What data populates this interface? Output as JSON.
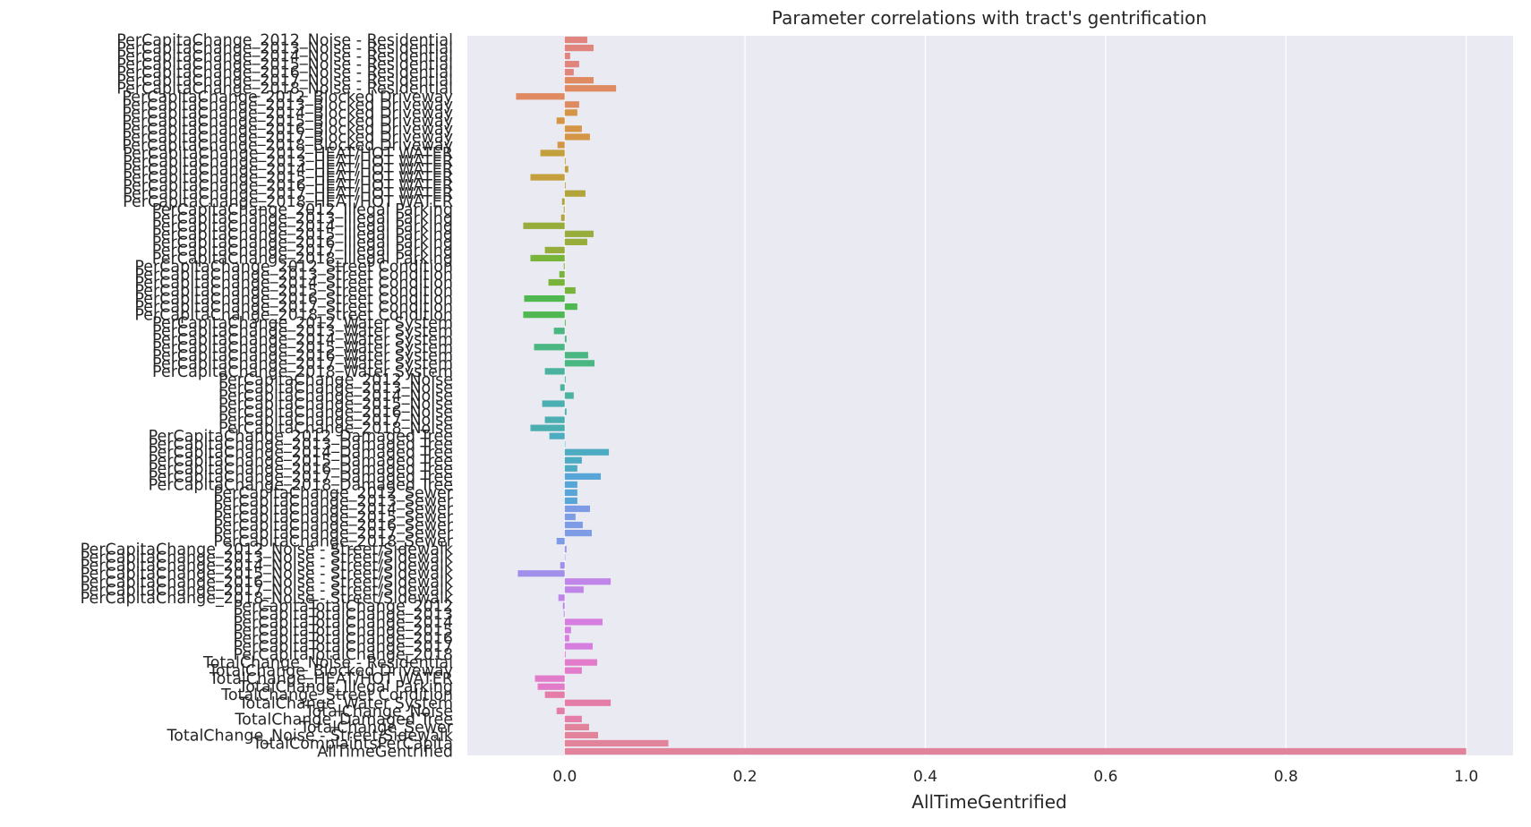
{
  "chart_data": {
    "type": "bar",
    "orientation": "horizontal",
    "title": "Parameter correlations with tract's gentrification",
    "xlabel": "AllTimeGentrified",
    "ylabel": "",
    "xlim": [
      -0.108,
      1.052
    ],
    "xticks": [
      0.0,
      0.2,
      0.4,
      0.6,
      0.8,
      1.0
    ],
    "xtick_labels": [
      "0.0",
      "0.2",
      "0.4",
      "0.6",
      "0.8",
      "1.0"
    ],
    "grid": true,
    "colors": {
      "background": "#eaeaf2",
      "grid": "#ffffff",
      "palette": [
        "#e1847d",
        "#e08a61",
        "#d59546",
        "#c49f3e",
        "#b1a53a",
        "#97ad3b",
        "#78b33a",
        "#4fb851",
        "#4ab783",
        "#4bb29f",
        "#4bafb1",
        "#4eacc2",
        "#58a6d7",
        "#7e9ce6",
        "#a190ea",
        "#bf85e9",
        "#d67de0",
        "#e27bc9",
        "#e47ea9",
        "#e1849b"
      ]
    },
    "categories": [
      "PerCapitaChange_2012_Noise - Residential",
      "PerCapitaChange_2013_Noise - Residential",
      "PerCapitaChange_2014_Noise - Residential",
      "PerCapitaChange_2015_Noise - Residential",
      "PerCapitaChange_2016_Noise - Residential",
      "PerCapitaChange_2017_Noise - Residential",
      "PerCapitaChange_2018_Noise - Residential",
      "PerCapitaChange_2012_Blocked Driveway",
      "PerCapitaChange_2013_Blocked Driveway",
      "PerCapitaChange_2014_Blocked Driveway",
      "PerCapitaChange_2015_Blocked Driveway",
      "PerCapitaChange_2016_Blocked Driveway",
      "PerCapitaChange_2017_Blocked Driveway",
      "PerCapitaChange_2018_Blocked Driveway",
      "PerCapitaChange_2012_HEAT/HOT WATER",
      "PerCapitaChange_2013_HEAT/HOT WATER",
      "PerCapitaChange_2014_HEAT/HOT WATER",
      "PerCapitaChange_2015_HEAT/HOT WATER",
      "PerCapitaChange_2016_HEAT/HOT WATER",
      "PerCapitaChange_2017_HEAT/HOT WATER",
      "PerCapitaChange_2018_HEAT/HOT WATER",
      "PerCapitaChange_2012_Illegal Parking",
      "PerCapitaChange_2013_Illegal Parking",
      "PerCapitaChange_2014_Illegal Parking",
      "PerCapitaChange_2015_Illegal Parking",
      "PerCapitaChange_2016_Illegal Parking",
      "PerCapitaChange_2017_Illegal Parking",
      "PerCapitaChange_2018_Illegal Parking",
      "PerCapitaChange_2012_Street Condition",
      "PerCapitaChange_2013_Street Condition",
      "PerCapitaChange_2014_Street Condition",
      "PerCapitaChange_2015_Street Condition",
      "PerCapitaChange_2016_Street Condition",
      "PerCapitaChange_2017_Street Condition",
      "PerCapitaChange_2018_Street Condition",
      "PerCapitaChange_2012_Water System",
      "PerCapitaChange_2013_Water System",
      "PerCapitaChange_2014_Water System",
      "PerCapitaChange_2015_Water System",
      "PerCapitaChange_2016_Water System",
      "PerCapitaChange_2017_Water System",
      "PerCapitaChange_2018_Water System",
      "PerCapitaChange_2012_Noise",
      "PerCapitaChange_2013_Noise",
      "PerCapitaChange_2014_Noise",
      "PerCapitaChange_2015_Noise",
      "PerCapitaChange_2016_Noise",
      "PerCapitaChange_2017_Noise",
      "PerCapitaChange_2018_Noise",
      "PerCapitaChange_2012_Damaged Tree",
      "PerCapitaChange_2013_Damaged Tree",
      "PerCapitaChange_2014_Damaged Tree",
      "PerCapitaChange_2015_Damaged Tree",
      "PerCapitaChange_2016_Damaged Tree",
      "PerCapitaChange_2017_Damaged Tree",
      "PerCapitaChange_2018_Damaged Tree",
      "PerCapitaChange_2012_Sewer",
      "PerCapitaChange_2013_Sewer",
      "PerCapitaChange_2014_Sewer",
      "PerCapitaChange_2015_Sewer",
      "PerCapitaChange_2016_Sewer",
      "PerCapitaChange_2017_Sewer",
      "PerCapitaChange_2018_Sewer",
      "PerCapitaChange_2012_Noise - Street/Sidewalk",
      "PerCapitaChange_2013_Noise - Street/Sidewalk",
      "PerCapitaChange_2014_Noise - Street/Sidewalk",
      "PerCapitaChange_2015_Noise - Street/Sidewalk",
      "PerCapitaChange_2016_Noise - Street/Sidewalk",
      "PerCapitaChange_2017_Noise - Street/Sidewalk",
      "PerCapitaChange_2018_Noise - Street/Sidewalk",
      "PerCapitaTotalChange_2012",
      "PerCapitaTotalChange_2013",
      "PerCapitaTotalChange_2014",
      "PerCapitaTotalChange_2015",
      "PerCapitaTotalChange_2016",
      "PerCapitaTotalChange_2017",
      "PerCapitaTotalChange_2018",
      "TotalChange_Noise - Residential",
      "TotalChange_Blocked Driveway",
      "TotalChange_HEAT/HOT WATER",
      "TotalChange_Illegal Parking",
      "TotalChange_Street Condition",
      "TotalChange_Water System",
      "TotalChange_Noise",
      "TotalChange_Damaged Tree",
      "TotalChange_Sewer",
      "TotalChange_Noise - Street/Sidewalk",
      "TotalComplaintsPerCapita",
      "AllTimeGentrified"
    ],
    "values": [
      0.025,
      0.032,
      0.006,
      0.016,
      0.01,
      0.032,
      0.057,
      -0.054,
      0.016,
      0.014,
      -0.009,
      0.019,
      0.028,
      -0.008,
      -0.027,
      0.001,
      0.004,
      -0.038,
      0.001,
      0.023,
      -0.003,
      -0.001,
      -0.004,
      -0.046,
      0.032,
      0.025,
      -0.022,
      -0.038,
      -0.001,
      -0.006,
      -0.018,
      0.012,
      -0.045,
      0.014,
      -0.046,
      0.001,
      -0.012,
      0.002,
      -0.034,
      0.026,
      0.033,
      -0.022,
      0.001,
      -0.005,
      0.01,
      -0.025,
      0.002,
      -0.022,
      -0.038,
      -0.017,
      0.0,
      0.049,
      0.019,
      0.014,
      0.04,
      0.014,
      0.014,
      0.014,
      0.028,
      0.012,
      0.02,
      0.03,
      -0.009,
      0.002,
      0.0,
      -0.005,
      -0.052,
      0.051,
      0.021,
      -0.007,
      -0.002,
      -0.001,
      0.042,
      0.007,
      0.005,
      0.031,
      0.001,
      0.036,
      0.019,
      -0.033,
      -0.03,
      -0.022,
      0.051,
      -0.009,
      0.019,
      0.027,
      0.037,
      0.115,
      1.0
    ]
  }
}
